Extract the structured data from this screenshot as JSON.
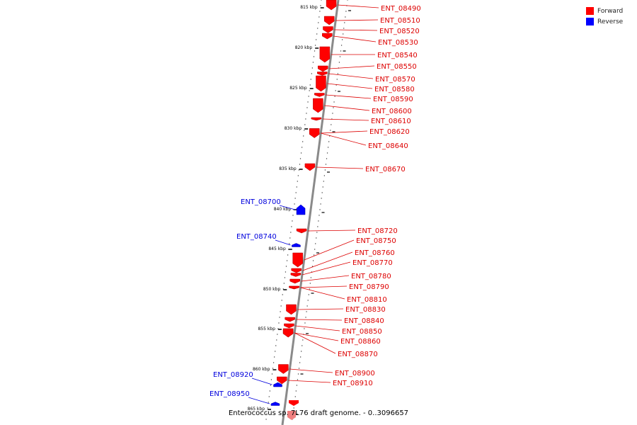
{
  "colors": {
    "forward": "#ff0000",
    "reverse": "#0000ff",
    "axis": "#888888",
    "label_forward": "#dd0000",
    "label_reverse": "#0000dd"
  },
  "legend": [
    {
      "label": "Forward",
      "color": "#ff0000"
    },
    {
      "label": "Reverse",
      "color": "#0000ff"
    }
  ],
  "caption": "Enterococcus sp. 7L76 draft genome. - 0..3096657",
  "ticks": [
    "815 kbp",
    "820 kbp",
    "825 kbp",
    "830 kbp",
    "835 kbp",
    "840 kbp",
    "845 kbp",
    "850 kbp",
    "855 kbp",
    "860 kbp",
    "865 kbp"
  ],
  "genes": [
    {
      "id": "ENT_08490",
      "strand": "forward"
    },
    {
      "id": "ENT_08510",
      "strand": "forward"
    },
    {
      "id": "ENT_08520",
      "strand": "forward"
    },
    {
      "id": "ENT_08530",
      "strand": "forward"
    },
    {
      "id": "ENT_08540",
      "strand": "forward"
    },
    {
      "id": "ENT_08550",
      "strand": "forward"
    },
    {
      "id": "ENT_08570",
      "strand": "forward"
    },
    {
      "id": "ENT_08580",
      "strand": "forward"
    },
    {
      "id": "ENT_08590",
      "strand": "forward"
    },
    {
      "id": "ENT_08600",
      "strand": "forward"
    },
    {
      "id": "ENT_08610",
      "strand": "forward"
    },
    {
      "id": "ENT_08620",
      "strand": "forward"
    },
    {
      "id": "ENT_08640",
      "strand": "forward"
    },
    {
      "id": "ENT_08670",
      "strand": "forward"
    },
    {
      "id": "ENT_08700",
      "strand": "reverse"
    },
    {
      "id": "ENT_08720",
      "strand": "forward"
    },
    {
      "id": "ENT_08740",
      "strand": "reverse"
    },
    {
      "id": "ENT_08750",
      "strand": "forward"
    },
    {
      "id": "ENT_08760",
      "strand": "forward"
    },
    {
      "id": "ENT_08770",
      "strand": "forward"
    },
    {
      "id": "ENT_08780",
      "strand": "forward"
    },
    {
      "id": "ENT_08790",
      "strand": "forward"
    },
    {
      "id": "ENT_08810",
      "strand": "forward"
    },
    {
      "id": "ENT_08830",
      "strand": "forward"
    },
    {
      "id": "ENT_08840",
      "strand": "forward"
    },
    {
      "id": "ENT_08850",
      "strand": "forward"
    },
    {
      "id": "ENT_08860",
      "strand": "forward"
    },
    {
      "id": "ENT_08870",
      "strand": "forward"
    },
    {
      "id": "ENT_08900",
      "strand": "forward"
    },
    {
      "id": "ENT_08910",
      "strand": "forward"
    },
    {
      "id": "ENT_08920",
      "strand": "reverse"
    },
    {
      "id": "ENT_08950",
      "strand": "reverse"
    }
  ]
}
